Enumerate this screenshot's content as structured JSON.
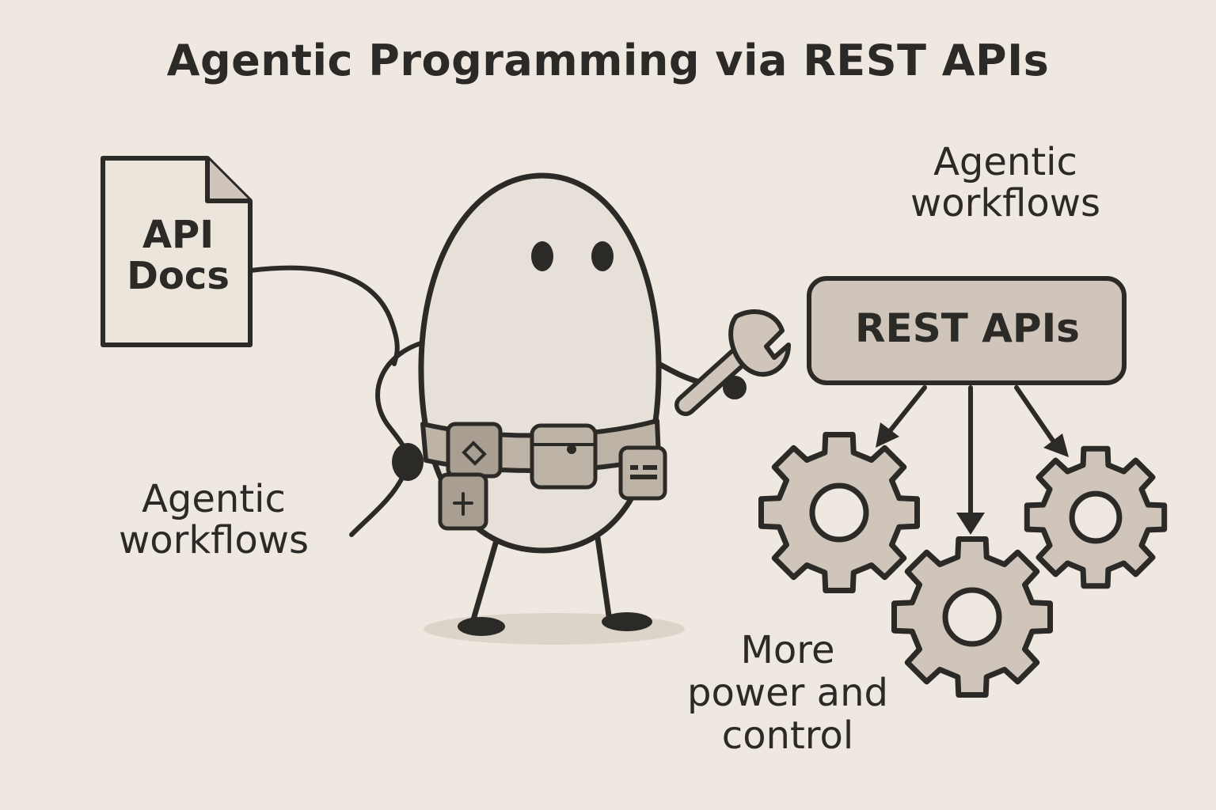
{
  "title": "Agentic Programming via REST APIs",
  "nodes": {
    "api_docs": "API\nDocs",
    "rest_apis": "REST APIs",
    "workflows_left": "Agentic\nworkflows",
    "workflows_right": "Agentic\nworkflows",
    "power": "More\npower and\ncontrol"
  },
  "icons": [
    "document-icon",
    "robot-character",
    "wrench-icon",
    "tool-belt",
    "gear-icon"
  ],
  "colors": {
    "background": "#efe8e0",
    "ink": "#2b2a27",
    "fill": "#cfc5ba",
    "body": "#e6e0d8"
  }
}
